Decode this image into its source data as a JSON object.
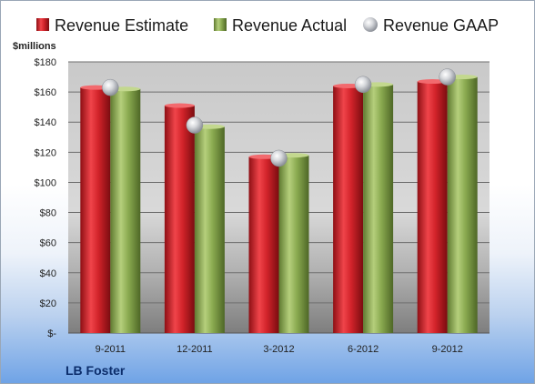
{
  "chart_data": {
    "type": "bar",
    "title": "",
    "ylabel": "$millions",
    "caption": "LB Foster",
    "ylim": [
      0,
      180
    ],
    "ytick_step": 20,
    "ytick_labels": [
      "$-",
      "$20",
      "$40",
      "$60",
      "$80",
      "$100",
      "$120",
      "$140",
      "$160",
      "$180"
    ],
    "categories": [
      "9-2011",
      "12-2011",
      "3-2012",
      "6-2012",
      "9-2012"
    ],
    "series": [
      {
        "name": "Revenue Estimate",
        "type": "bar",
        "color": "#d2232a",
        "values": [
          163,
          151,
          117,
          164,
          167
        ]
      },
      {
        "name": "Revenue Actual",
        "type": "bar",
        "color": "#8aaa50",
        "values": [
          162,
          137,
          118,
          165,
          170
        ]
      },
      {
        "name": "Revenue GAAP",
        "type": "marker",
        "color": "#c9ccd2",
        "values": [
          163,
          138,
          116,
          165,
          170
        ]
      }
    ],
    "legend_position": "top",
    "grid": true
  }
}
